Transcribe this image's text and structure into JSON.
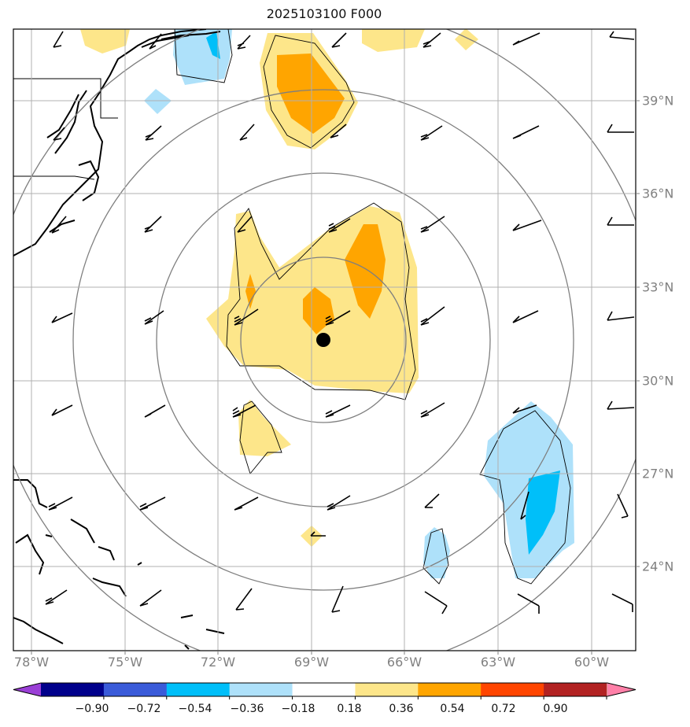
{
  "title": "2025103100 F000",
  "map": {
    "lon_labels": [
      "78°W",
      "75°W",
      "72°W",
      "69°W",
      "66°W",
      "63°W",
      "60°W"
    ],
    "lat_labels": [
      "39°N",
      "36°N",
      "33°N",
      "30°N",
      "27°N",
      "24°N"
    ],
    "center_marker": {
      "lon": -68.6,
      "lat": 31.3
    },
    "contour_fill": {
      "positive_light": "#fde68a",
      "positive_mid": "#ffa500",
      "negative_light": "#aee1fa",
      "negative_mid": "#00bff9"
    }
  },
  "colorbar": {
    "tick_labels": [
      "−0.90",
      "−0.72",
      "−0.54",
      "−0.36",
      "−0.18",
      "0.18",
      "0.36",
      "0.54",
      "0.72",
      "0.90"
    ],
    "colors": [
      "#9a3fd6",
      "#00008b",
      "#3a5bd9",
      "#00bff9",
      "#aee1fa",
      "#ffffff",
      "#fde68a",
      "#ffa500",
      "#ff4500",
      "#b22222",
      "#ff80a8"
    ]
  }
}
